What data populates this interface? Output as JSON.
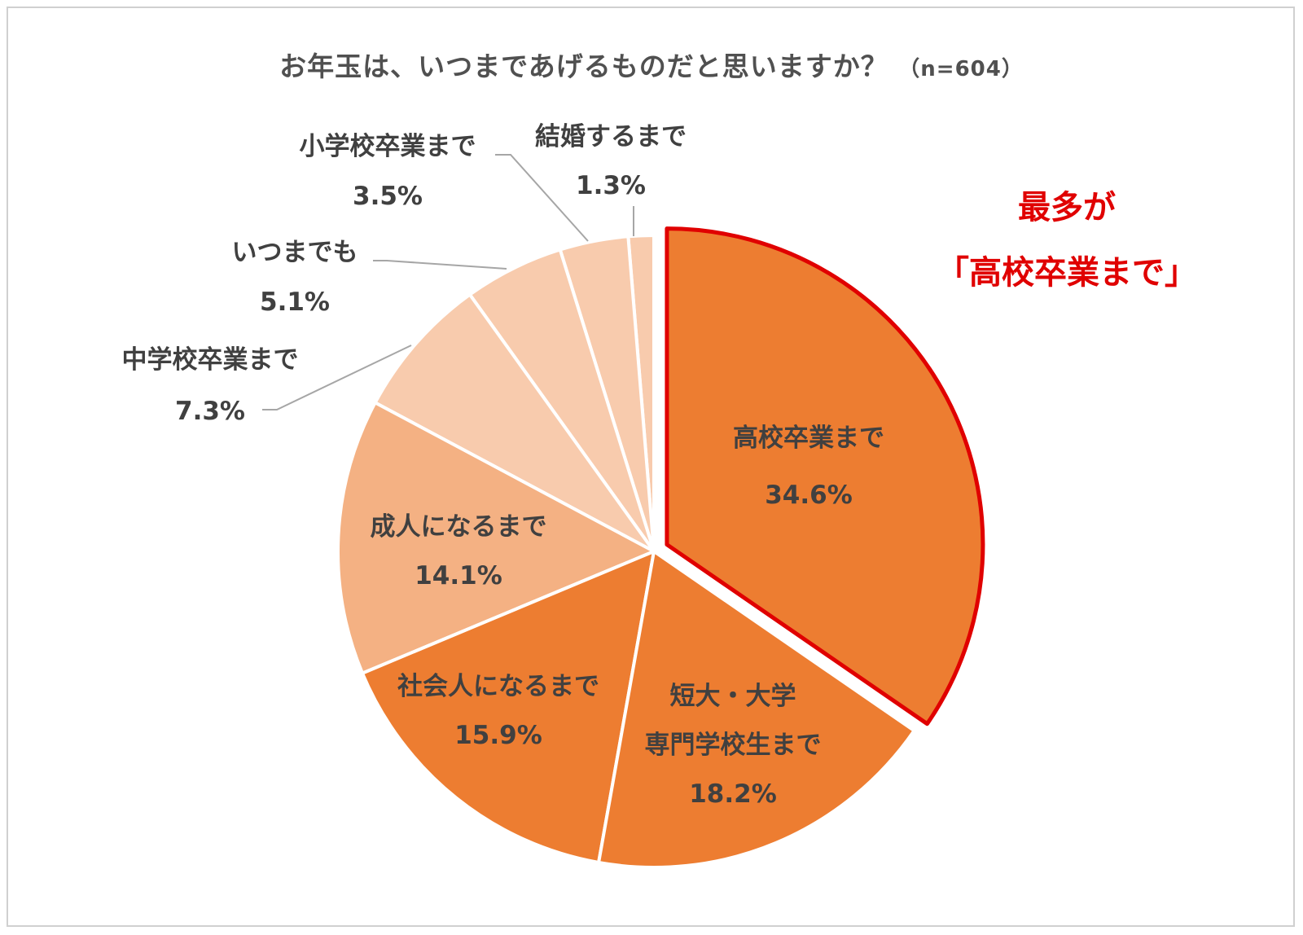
{
  "title": "お年玉は、いつまであげるものだと思いますか？",
  "sample": "（n=604）",
  "highlight": {
    "line1": "最多が",
    "line2": "「高校卒業まで」",
    "color": "#e00000"
  },
  "colors": {
    "dark": "#ed7d31",
    "medium": "#f4b183",
    "light": "#f8cbad",
    "leader": "#a6a6a6",
    "text": "#404040"
  },
  "chart_data": {
    "type": "pie",
    "start": "12 o'clock, clockwise",
    "highlighted_category": "高校卒業まで",
    "slices": [
      {
        "label": "高校卒業まで",
        "value": 34.6,
        "pct": "34.6%",
        "shade": "dark",
        "label_position": "inside"
      },
      {
        "label": "短大・大学 専門学校生まで",
        "lines": [
          "短大・大学",
          "専門学校生まで"
        ],
        "value": 18.2,
        "pct": "18.2%",
        "shade": "dark",
        "label_position": "inside"
      },
      {
        "label": "社会人になるまで",
        "value": 15.9,
        "pct": "15.9%",
        "shade": "dark",
        "label_position": "inside"
      },
      {
        "label": "成人になるまで",
        "value": 14.1,
        "pct": "14.1%",
        "shade": "medium",
        "label_position": "inside"
      },
      {
        "label": "中学校卒業まで",
        "value": 7.3,
        "pct": "7.3%",
        "shade": "light",
        "label_position": "outside"
      },
      {
        "label": "いつまでも",
        "value": 5.1,
        "pct": "5.1%",
        "shade": "light",
        "label_position": "outside"
      },
      {
        "label": "小学校卒業まで",
        "value": 3.5,
        "pct": "3.5%",
        "shade": "light",
        "label_position": "outside"
      },
      {
        "label": "結婚するまで",
        "value": 1.3,
        "pct": "1.3%",
        "shade": "light",
        "label_position": "outside"
      }
    ]
  }
}
